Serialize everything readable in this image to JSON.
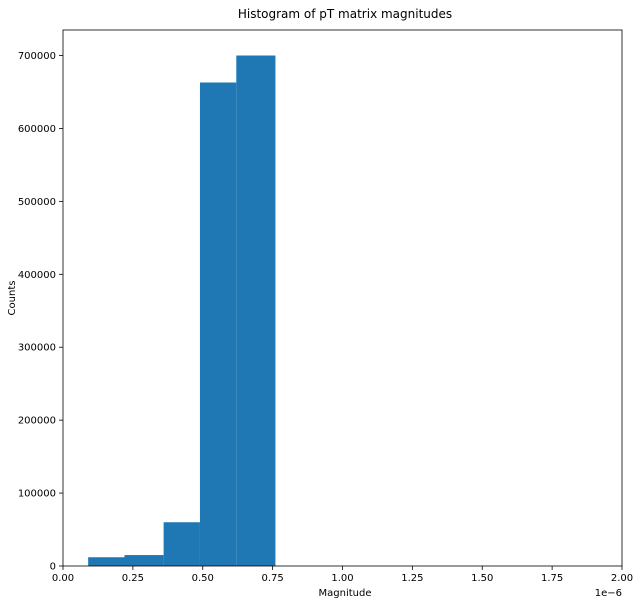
{
  "chart_data": {
    "type": "bar",
    "title": "Histogram of pT matrix magnitudes",
    "xlabel": "Magnitude",
    "ylabel": "Counts",
    "x_offset_label": "1e−6",
    "xlim": [
      0.0,
      2.0
    ],
    "ylim": [
      0,
      735000
    ],
    "bar_color": "#1f77b4",
    "grid": false,
    "bins": [
      {
        "x0": 0.09,
        "x1": 0.22,
        "count": 12000
      },
      {
        "x0": 0.22,
        "x1": 0.36,
        "count": 15000
      },
      {
        "x0": 0.36,
        "x1": 0.49,
        "count": 60000
      },
      {
        "x0": 0.49,
        "x1": 0.62,
        "count": 663000
      },
      {
        "x0": 0.62,
        "x1": 0.76,
        "count": 700000
      }
    ],
    "xticks": [
      {
        "value": 0.0,
        "label": "0.00"
      },
      {
        "value": 0.25,
        "label": "0.25"
      },
      {
        "value": 0.5,
        "label": "0.50"
      },
      {
        "value": 0.75,
        "label": "0.75"
      },
      {
        "value": 1.0,
        "label": "1.00"
      },
      {
        "value": 1.25,
        "label": "1.25"
      },
      {
        "value": 1.5,
        "label": "1.50"
      },
      {
        "value": 1.75,
        "label": "1.75"
      },
      {
        "value": 2.0,
        "label": "2.00"
      }
    ],
    "yticks": [
      {
        "value": 0,
        "label": "0"
      },
      {
        "value": 100000,
        "label": "100000"
      },
      {
        "value": 200000,
        "label": "200000"
      },
      {
        "value": 300000,
        "label": "300000"
      },
      {
        "value": 400000,
        "label": "400000"
      },
      {
        "value": 500000,
        "label": "500000"
      },
      {
        "value": 600000,
        "label": "600000"
      },
      {
        "value": 700000,
        "label": "700000"
      }
    ]
  }
}
